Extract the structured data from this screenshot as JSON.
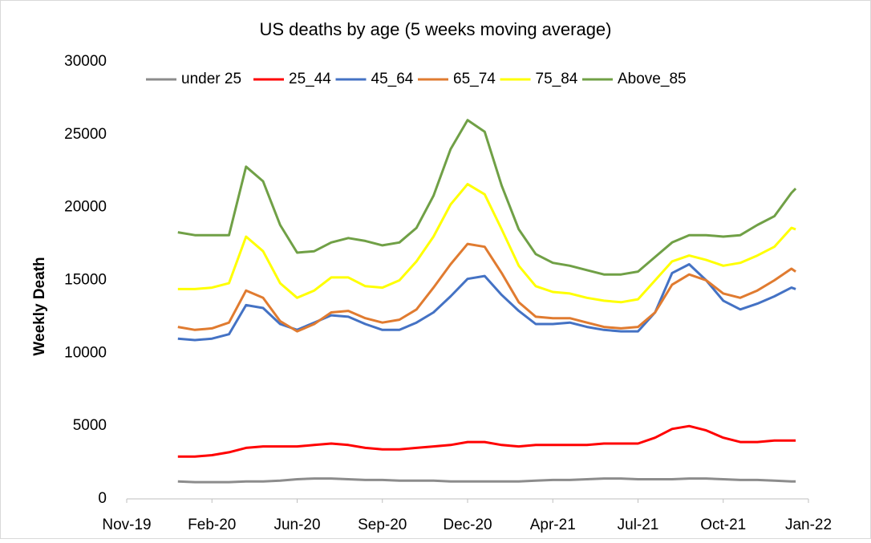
{
  "chart_data": {
    "type": "line",
    "title": "US deaths by age (5 weeks moving average)",
    "y_label": "Weekly Death",
    "x": [
      0.6,
      0.8,
      1.0,
      1.2,
      1.4,
      1.6,
      1.8,
      2.0,
      2.2,
      2.4,
      2.6,
      2.8,
      3.0,
      3.2,
      3.4,
      3.6,
      3.8,
      4.0,
      4.2,
      4.4,
      4.6,
      4.8,
      5.0,
      5.2,
      5.4,
      5.6,
      5.8,
      6.0,
      6.2,
      6.4,
      6.6,
      6.8,
      7.0,
      7.2,
      7.4,
      7.6,
      7.8,
      7.85
    ],
    "xlim": [
      0,
      8
    ],
    "xticks": [
      {
        "value": 0,
        "label": "Nov-19"
      },
      {
        "value": 1,
        "label": "Feb-20"
      },
      {
        "value": 2,
        "label": "Jun-20"
      },
      {
        "value": 3,
        "label": "Sep-20"
      },
      {
        "value": 4,
        "label": "Dec-20"
      },
      {
        "value": 5,
        "label": "Apr-21"
      },
      {
        "value": 6,
        "label": "Jul-21"
      },
      {
        "value": 7,
        "label": "Oct-21"
      },
      {
        "value": 8,
        "label": "Jan-22"
      }
    ],
    "ylim": [
      0,
      30000
    ],
    "yticks": [
      0,
      5000,
      10000,
      15000,
      20000,
      25000,
      30000
    ],
    "grid": false,
    "legend": "top",
    "series": [
      {
        "name": "under 25",
        "color": "#8c8c8c",
        "values": [
          1200,
          1150,
          1150,
          1150,
          1200,
          1200,
          1250,
          1350,
          1400,
          1400,
          1350,
          1300,
          1300,
          1250,
          1250,
          1250,
          1200,
          1200,
          1200,
          1200,
          1200,
          1250,
          1300,
          1300,
          1350,
          1400,
          1400,
          1350,
          1350,
          1350,
          1400,
          1400,
          1350,
          1300,
          1300,
          1250,
          1200,
          1200
        ]
      },
      {
        "name": "25_44",
        "color": "#ff0000",
        "values": [
          2900,
          2900,
          3000,
          3200,
          3500,
          3600,
          3600,
          3600,
          3700,
          3800,
          3700,
          3500,
          3400,
          3400,
          3500,
          3600,
          3700,
          3900,
          3900,
          3700,
          3600,
          3700,
          3700,
          3700,
          3700,
          3800,
          3800,
          3800,
          4200,
          4800,
          5000,
          4700,
          4200,
          3900,
          3900,
          4000,
          4000,
          4000
        ]
      },
      {
        "name": "45_64",
        "color": "#4472c4",
        "values": [
          11000,
          10900,
          11000,
          11300,
          13300,
          13100,
          12000,
          11600,
          12100,
          12600,
          12500,
          12000,
          11600,
          11600,
          12100,
          12800,
          13900,
          15100,
          15300,
          14000,
          12900,
          12000,
          12000,
          12100,
          11800,
          11600,
          11500,
          11500,
          12800,
          15500,
          16100,
          15000,
          13600,
          13000,
          13400,
          13900,
          14500,
          14400
        ]
      },
      {
        "name": "65_74",
        "color": "#e07b30",
        "values": [
          11800,
          11600,
          11700,
          12100,
          14300,
          13800,
          12200,
          11500,
          12000,
          12800,
          12900,
          12400,
          12100,
          12300,
          13000,
          14500,
          16100,
          17500,
          17300,
          15500,
          13500,
          12500,
          12400,
          12400,
          12100,
          11800,
          11700,
          11800,
          12800,
          14700,
          15400,
          15000,
          14100,
          13800,
          14300,
          15000,
          15800,
          15600
        ]
      },
      {
        "name": "75_84",
        "color": "#ffff00",
        "values": [
          14400,
          14400,
          14500,
          14800,
          18000,
          17000,
          14800,
          13800,
          14300,
          15200,
          15200,
          14600,
          14500,
          15000,
          16300,
          18000,
          20200,
          21600,
          20900,
          18500,
          16000,
          14600,
          14200,
          14100,
          13800,
          13600,
          13500,
          13700,
          15000,
          16300,
          16700,
          16400,
          16000,
          16200,
          16700,
          17300,
          18600,
          18500
        ]
      },
      {
        "name": "Above_85",
        "color": "#70a046",
        "values": [
          18300,
          18100,
          18100,
          18100,
          22800,
          21800,
          18800,
          16900,
          17000,
          17600,
          17900,
          17700,
          17400,
          17600,
          18600,
          20800,
          24000,
          26000,
          25200,
          21500,
          18500,
          16800,
          16200,
          16000,
          15700,
          15400,
          15400,
          15600,
          16600,
          17600,
          18100,
          18100,
          18000,
          18100,
          18800,
          19400,
          21000,
          21300
        ]
      }
    ]
  }
}
